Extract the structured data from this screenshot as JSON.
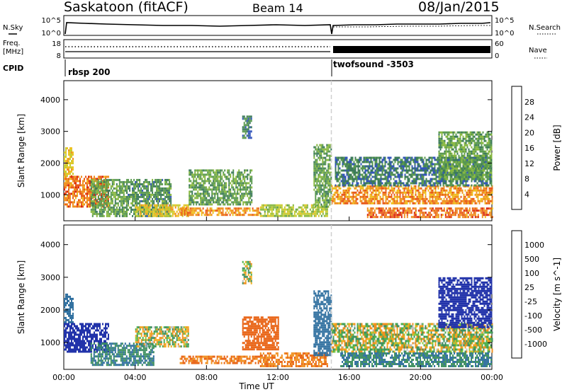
{
  "header": {
    "station": "Saskatoon (fitACF)",
    "beam": "Beam 14",
    "date": "08/Jan/2015"
  },
  "strips": {
    "nsky_label": "N.Sky",
    "nsearch_label": "N.Search",
    "noise_ticks_left": [
      "10^5",
      "10^0"
    ],
    "noise_ticks_right": [
      "10^5",
      "10^0"
    ],
    "freq_label": "Freq.",
    "freq_unit": "[MHz]",
    "freq_ticks": [
      "18",
      "8"
    ],
    "nave_label": "Nave",
    "nave_ticks": [
      "60",
      "0"
    ],
    "cpid_label": "CPID",
    "cpid_segments": [
      {
        "label": "rbsp 200",
        "start_hour": 0
      },
      {
        "label": "twofsound -3503",
        "start_hour": 15
      }
    ]
  },
  "chart_data": [
    {
      "type": "heatmap",
      "name": "power-panel",
      "ylabel": "Slant Range [km]",
      "ylim": [
        180,
        4600
      ],
      "yticks": [
        1000,
        2000,
        3000,
        4000
      ],
      "xlim": [
        "00:00",
        "24:00"
      ],
      "xticks": [
        "00:00",
        "04:00",
        "08:00",
        "12:00",
        "16:00",
        "20:00",
        "00:00"
      ],
      "colorbar": {
        "label": "Power [dB]",
        "ticks": [
          4,
          8,
          12,
          16,
          20,
          24,
          28
        ],
        "colors": [
          "#2233dd",
          "#3355bb",
          "#3c7a5a",
          "#5a9a50",
          "#88b840",
          "#c8cc30",
          "#f0c020",
          "#f09020",
          "#e85a1a",
          "#d82010"
        ]
      },
      "regions": [
        {
          "t": [
            0.0,
            0.5
          ],
          "r": [
            1600,
            2500
          ],
          "value": 20
        },
        {
          "t": [
            0.0,
            2.5
          ],
          "r": [
            600,
            1600
          ],
          "value": 26
        },
        {
          "t": [
            1.5,
            3.5
          ],
          "r": [
            300,
            1500
          ],
          "value": 12
        },
        {
          "t": [
            3.5,
            6.0
          ],
          "r": [
            300,
            1500
          ],
          "value": 10
        },
        {
          "t": [
            4.0,
            7.0
          ],
          "r": [
            300,
            700
          ],
          "value": 20
        },
        {
          "t": [
            6.5,
            11.0
          ],
          "r": [
            350,
            600
          ],
          "value": 24
        },
        {
          "t": [
            7.0,
            10.5
          ],
          "r": [
            700,
            1800
          ],
          "value": 12
        },
        {
          "t": [
            10.0,
            10.5
          ],
          "r": [
            2800,
            3500
          ],
          "value": 8
        },
        {
          "t": [
            11.0,
            14.8
          ],
          "r": [
            300,
            700
          ],
          "value": 16
        },
        {
          "t": [
            14.0,
            15.0
          ],
          "r": [
            600,
            2600
          ],
          "value": 12
        },
        {
          "t": [
            15.0,
            24.0
          ],
          "r": [
            700,
            1300
          ],
          "value": 24
        },
        {
          "t": [
            17.0,
            24.0
          ],
          "r": [
            300,
            600
          ],
          "value": 26
        },
        {
          "t": [
            15.2,
            24.0
          ],
          "r": [
            1300,
            2200
          ],
          "value": 8
        },
        {
          "t": [
            21.0,
            24.0
          ],
          "r": [
            1500,
            3000
          ],
          "value": 12
        }
      ]
    },
    {
      "type": "heatmap",
      "name": "velocity-panel",
      "ylabel": "Slant Range [km]",
      "xlabel": "Time UT",
      "ylim": [
        180,
        4600
      ],
      "yticks": [
        1000,
        2000,
        3000,
        4000
      ],
      "xlim": [
        "00:00",
        "24:00"
      ],
      "xticks": [
        "00:00",
        "04:00",
        "08:00",
        "12:00",
        "16:00",
        "20:00",
        "00:00"
      ],
      "colorbar": {
        "label": "Velocity [m s^-1]",
        "ticks": [
          1000,
          500,
          100,
          25,
          -25,
          -100,
          -500,
          -1000
        ],
        "colors": [
          "#2233aa",
          "#2f6f9f",
          "#3d8f5f",
          "#50b050",
          "#8ccc40",
          "#c0c0c0",
          "#f0b020",
          "#f09020",
          "#e86010",
          "#e02010"
        ]
      },
      "regions": [
        {
          "t": [
            0.0,
            0.5
          ],
          "r": [
            1600,
            2500
          ],
          "value": 100
        },
        {
          "t": [
            0.0,
            2.5
          ],
          "r": [
            700,
            1600
          ],
          "value": 300
        },
        {
          "t": [
            1.5,
            5.0
          ],
          "r": [
            300,
            1000
          ],
          "value": 60
        },
        {
          "t": [
            4.0,
            7.0
          ],
          "r": [
            900,
            1500
          ],
          "value": 0
        },
        {
          "t": [
            6.5,
            11.0
          ],
          "r": [
            350,
            600
          ],
          "value": -60
        },
        {
          "t": [
            10.0,
            10.5
          ],
          "r": [
            2800,
            3500
          ],
          "value": 0
        },
        {
          "t": [
            10.0,
            12.0
          ],
          "r": [
            800,
            1800
          ],
          "value": -150
        },
        {
          "t": [
            11.0,
            14.8
          ],
          "r": [
            300,
            700
          ],
          "value": -60
        },
        {
          "t": [
            14.0,
            15.0
          ],
          "r": [
            600,
            2600
          ],
          "value": 100
        },
        {
          "t": [
            15.0,
            24.0
          ],
          "r": [
            700,
            1600
          ],
          "value": 0
        },
        {
          "t": [
            15.5,
            24.0
          ],
          "r": [
            300,
            700
          ],
          "value": 60
        },
        {
          "t": [
            21.0,
            24.0
          ],
          "r": [
            1500,
            3000
          ],
          "value": 400
        }
      ]
    }
  ]
}
